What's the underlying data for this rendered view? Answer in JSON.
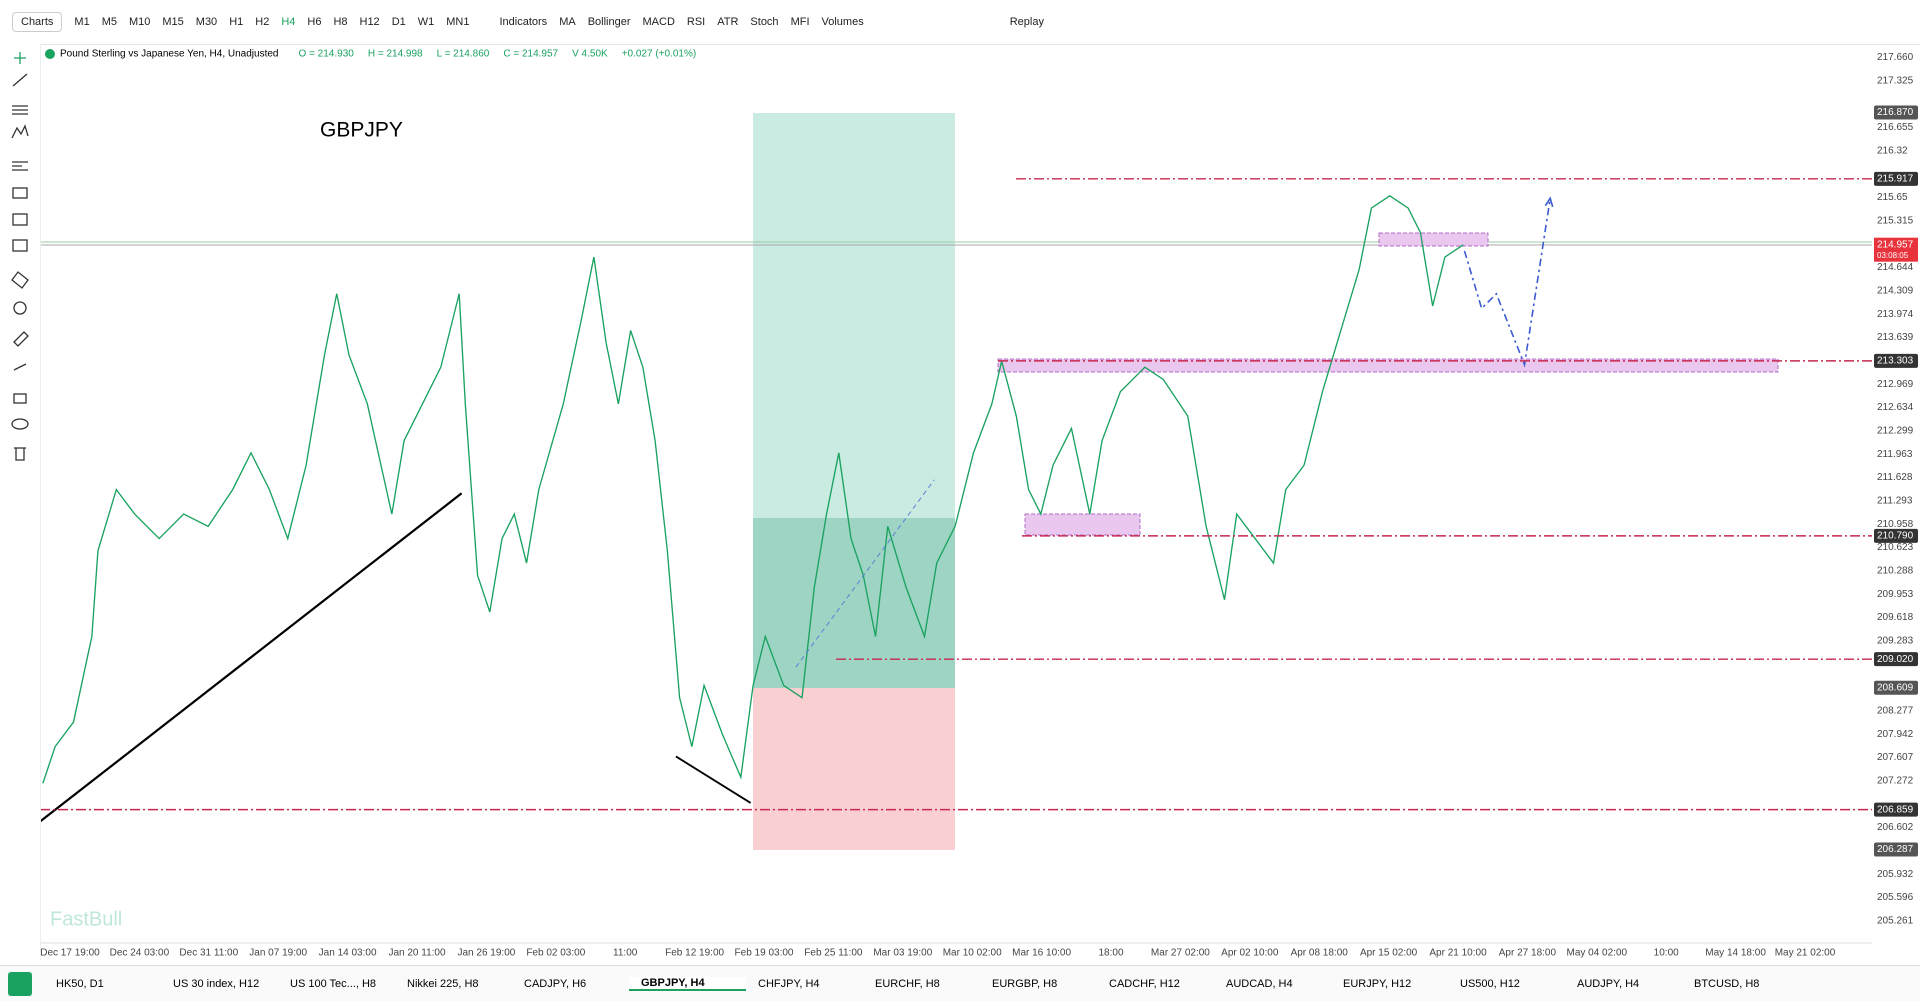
{
  "toolbar": {
    "charts": "Charts",
    "timeframes": [
      "M1",
      "M5",
      "M10",
      "M15",
      "M30",
      "H1",
      "H2",
      "H4",
      "H6",
      "H8",
      "H12",
      "D1",
      "W1",
      "MN1"
    ],
    "active_timeframe_index": 7,
    "indicators": "Indicators",
    "studies": [
      "MA",
      "Bollinger",
      "MACD",
      "RSI",
      "ATR",
      "Stoch",
      "MFI",
      "Volumes"
    ],
    "replay": "Replay"
  },
  "header": {
    "symbol": "Pound Sterling vs Japanese Yen, H4, Unadjusted",
    "ohlc": [
      "O = 214.930",
      "H = 214.998",
      "L = 214.860",
      "C = 214.957"
    ],
    "volume": "V 4.50K",
    "change": "+0.027 (+0.01%)"
  },
  "chart_label": "GBPJPY",
  "watermark": "FastBull",
  "price_axis": {
    "range": [
      204.944,
      217.853
    ],
    "labels": [
      {
        "value": 217.66,
        "label": "217.660"
      },
      217.325,
      216.655,
      216.32,
      215.65,
      215.315,
      214.644,
      214.309,
      213.974,
      213.639,
      212.969,
      212.634,
      212.299,
      211.963,
      211.628,
      211.293,
      210.958,
      210.623,
      210.288,
      209.953,
      209.618,
      209.283,
      208.277,
      207.942,
      207.607,
      207.272,
      206.602,
      205.932,
      205.596,
      205.261
    ],
    "levels": [
      215.917,
      213.303,
      {
        "value": 210.79,
        "label": "210.790"
      },
      {
        "value": 209.02,
        "label": "209.020"
      },
      206.859
    ],
    "box_levels": [
      {
        "value": 216.87,
        "label": "216.870"
      },
      208.609,
      206.287
    ],
    "current": {
      "value": 214.957,
      "countdown": "03:08:05"
    }
  },
  "time_axis": [
    "Dec 17 19:00",
    "Dec 24 03:00",
    "Dec 31 11:00",
    "Jan 07 19:00",
    "Jan 14 03:00",
    "Jan 20 11:00",
    "Jan 26 19:00",
    "Feb 02 03:00",
    "11:00",
    "Feb 12 19:00",
    "Feb 19 03:00",
    "Feb 25 11:00",
    "Mar 03 19:00",
    "Mar 10 02:00",
    "Mar 16 10:00",
    "18:00",
    "Mar 27 02:00",
    "Apr 02 10:00",
    "Apr 08 18:00",
    "Apr 15 02:00",
    "Apr 21 10:00",
    "Apr 27 18:00",
    "May 04 02:00",
    "10:00",
    "May 14 18:00",
    "May 21 02:00"
  ],
  "tabs": [
    "HK50, D1",
    "US 30 index, H12",
    "US 100 Tec..., H8",
    "Nikkei 225, H8",
    "CADJPY, H6",
    "GBPJPY, H4",
    "CHFJPY, H4",
    "EURCHF, H8",
    "EURGBP, H8",
    "CADCHF, H12",
    "AUDCAD, H4",
    "EURJPY, H12",
    "US500, H12",
    "AUDJPY, H4",
    "BTCUSD, H8"
  ],
  "active_tab_index": 5
}
